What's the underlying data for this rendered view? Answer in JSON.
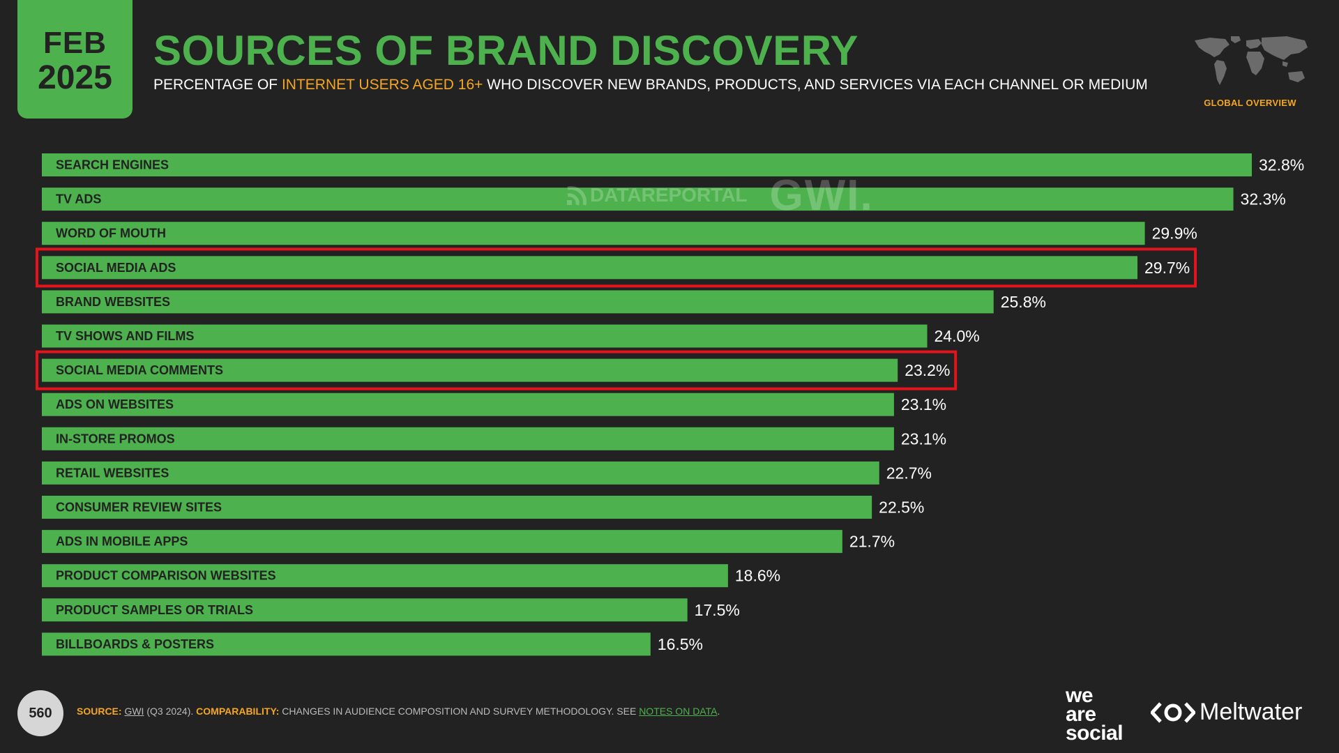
{
  "header": {
    "month": "FEB",
    "year": "2025",
    "title": "SOURCES OF BRAND DISCOVERY",
    "subtitle_pre": "PERCENTAGE OF ",
    "subtitle_highlight": "INTERNET USERS AGED 16+",
    "subtitle_post": " WHO DISCOVER NEW BRANDS, PRODUCTS, AND SERVICES VIA EACH CHANNEL OR MEDIUM",
    "region_label": "GLOBAL OVERVIEW"
  },
  "watermark": {
    "datareportal": "DATAREPORTAL",
    "gwi": "GWI."
  },
  "chart_data": {
    "type": "bar",
    "orientation": "horizontal",
    "categories": [
      "SEARCH ENGINES",
      "TV ADS",
      "WORD OF MOUTH",
      "SOCIAL MEDIA ADS",
      "BRAND WEBSITES",
      "TV SHOWS AND FILMS",
      "SOCIAL MEDIA COMMENTS",
      "ADS ON WEBSITES",
      "IN-STORE PROMOS",
      "RETAIL WEBSITES",
      "CONSUMER REVIEW SITES",
      "ADS IN MOBILE APPS",
      "PRODUCT COMPARISON WEBSITES",
      "PRODUCT SAMPLES OR TRIALS",
      "BILLBOARDS & POSTERS"
    ],
    "values": [
      32.8,
      32.3,
      29.9,
      29.7,
      25.8,
      24.0,
      23.2,
      23.1,
      23.1,
      22.7,
      22.5,
      21.7,
      18.6,
      17.5,
      16.5
    ],
    "value_labels": [
      "32.8%",
      "32.3%",
      "29.9%",
      "29.7%",
      "25.8%",
      "24.0%",
      "23.2%",
      "23.1%",
      "23.1%",
      "22.7%",
      "22.5%",
      "21.7%",
      "18.6%",
      "17.5%",
      "16.5%"
    ],
    "highlighted": [
      "SOCIAL MEDIA ADS",
      "SOCIAL MEDIA COMMENTS"
    ],
    "xlim": [
      0,
      32.8
    ],
    "bar_color": "#4db24d",
    "highlight_color": "#e3141b",
    "grid": false
  },
  "footer": {
    "page_number": "560",
    "source_key": "SOURCE:",
    "source_gwi": "GWI",
    "source_period": " (Q3 2024). ",
    "comparability_key": "COMPARABILITY:",
    "comparability_text": " CHANGES IN AUDIENCE COMPOSITION AND SURVEY METHODOLOGY. SEE ",
    "notes_link": "NOTES ON DATA",
    "notes_end": ".",
    "brand1_line1": "we",
    "brand1_line2": "are",
    "brand1_line3": "social",
    "brand2": "Meltwater"
  },
  "colors": {
    "accent": "#4db24d",
    "highlight": "#f5a623",
    "background": "#222222"
  }
}
